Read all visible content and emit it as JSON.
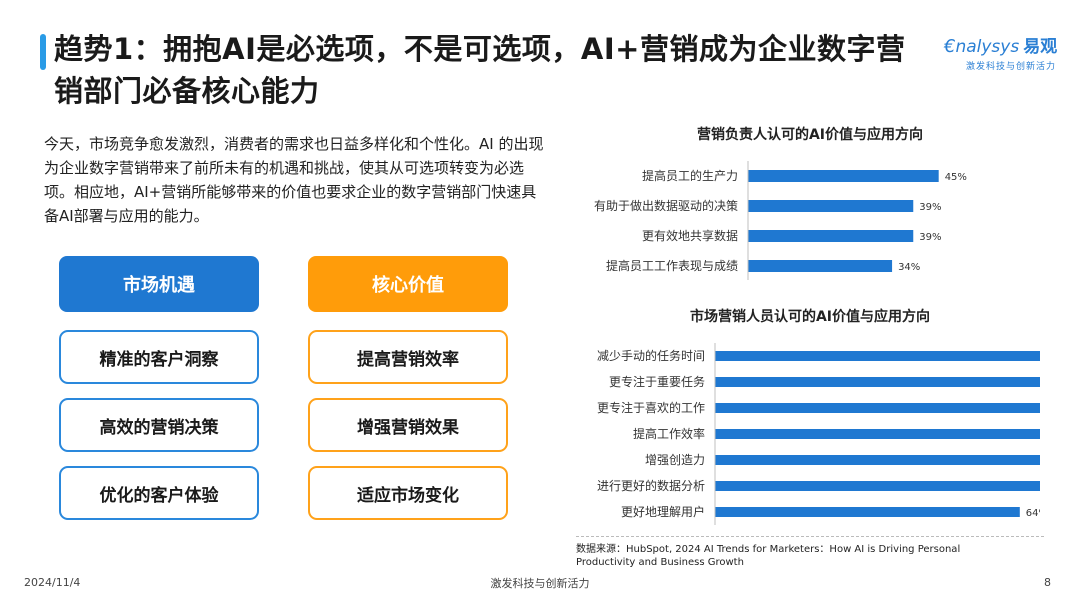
{
  "title": "趋势1：拥抱AI是必选项，不是可选项，AI+营销成为企业数字营销部门必备核心能力",
  "logo": {
    "main": "nalysys",
    "cn": "易观",
    "sub": "激发科技与创新活力"
  },
  "intro": "今天，市场竞争愈发激烈，消费者的需求也日益多样化和个性化。AI 的出现为企业数字营销带来了前所未有的机遇和挑战，使其从可选项转变为必选项。相应地，AI+营销所能够带来的价值也要求企业的数字营销部门快速具备AI部署与应用的能力。",
  "left_column": {
    "header": "市场机遇",
    "items": [
      "精准的客户洞察",
      "高效的营销决策",
      "优化的客户体验"
    ]
  },
  "right_column": {
    "header": "核心价值",
    "items": [
      "提高营销效率",
      "增强营销效果",
      "适应市场变化"
    ]
  },
  "colors": {
    "accent": "#1f78d1",
    "orange": "#ff9c0a",
    "bar": "#1f78d1"
  },
  "chart_data": [
    {
      "type": "bar",
      "orientation": "horizontal",
      "title": "营销负责人认可的AI价值与应用方向",
      "categories": [
        "提高员工的生产力",
        "有助于做出数据驱动的决策",
        "更有效地共享数据",
        "提高员工工作表现与成绩"
      ],
      "values": [
        45,
        39,
        39,
        34
      ],
      "unit": "%",
      "xlim": [
        0,
        80
      ],
      "grid": false,
      "legend": "none"
    },
    {
      "type": "bar",
      "orientation": "horizontal",
      "title": "市场营销人员认可的AI价值与应用方向",
      "categories": [
        "减少手动的任务时间",
        "更专注于重要任务",
        "更专注于喜欢的工作",
        "提高工作效率",
        "增强创造力",
        "进行更好的数据分析",
        "更好地理解用户"
      ],
      "values": [
        75,
        73,
        73,
        73,
        70,
        70,
        64
      ],
      "unit": "%",
      "xlim": [
        0,
        80
      ],
      "grid": false,
      "legend": "none"
    }
  ],
  "source": "数据来源：HubSpot, 2024 AI Trends for Marketers：How AI is Driving Personal Productivity and Business Growth",
  "footer": {
    "date": "2024/11/4",
    "center": "激发科技与创新活力",
    "page": "8"
  }
}
